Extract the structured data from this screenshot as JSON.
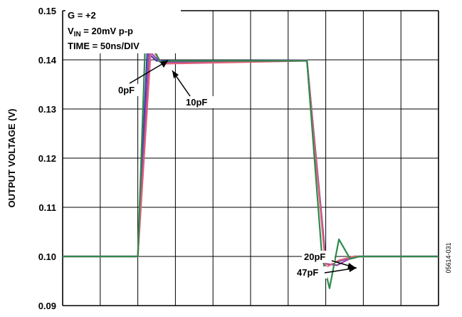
{
  "chart_data": {
    "type": "line",
    "ylabel": "OUTPUT VOLTAGE (V)",
    "xlabel": "",
    "ylim": [
      0.09,
      0.15
    ],
    "x_divisions": 10,
    "y_ticks": [
      "0.09",
      "0.10",
      "0.11",
      "0.12",
      "0.13",
      "0.14",
      "0.15"
    ],
    "grid": true,
    "info_lines": {
      "gain": "G = +2",
      "vin_main": "V",
      "vin_sub": "IN",
      "vin_rest": " = 20mV p-p",
      "time": "TIME = 50ns/DIV"
    },
    "annotations": [
      "0pF",
      "10pF",
      "20pF",
      "47pF"
    ],
    "figure_id": "05614-031",
    "series": [
      {
        "name": "0pF",
        "color": "#3d3daa",
        "x": [
          0,
          4.0,
          4.5,
          5.0,
          13.0,
          14.0,
          14.5,
          15.5,
          20.0
        ],
        "y": [
          0.1,
          0.1,
          0.1415,
          0.1398,
          0.1399,
          0.0992,
          0.0988,
          0.1,
          0.1
        ]
      },
      {
        "name": "10pF",
        "color": "#9a44aa",
        "x": [
          0,
          4.0,
          4.6,
          5.2,
          13.0,
          14.0,
          14.6,
          15.5,
          20.0
        ],
        "y": [
          0.1,
          0.1,
          0.1418,
          0.1395,
          0.1399,
          0.0985,
          0.0982,
          0.1,
          0.1
        ]
      },
      {
        "name": "20pF",
        "color": "#e0607a",
        "x": [
          0,
          4.0,
          4.7,
          5.3,
          13.0,
          14.0,
          14.7,
          15.5,
          20.0
        ],
        "y": [
          0.1,
          0.1,
          0.1425,
          0.1392,
          0.1398,
          0.0978,
          0.0992,
          0.1,
          0.1
        ]
      },
      {
        "name": "47pF",
        "color": "#2e8a4a",
        "x": [
          0,
          4.0,
          4.4,
          4.8,
          5.2,
          5.8,
          13.0,
          13.8,
          14.2,
          14.7,
          15.3,
          15.8,
          20.0
        ],
        "y": [
          0.1,
          0.1,
          0.144,
          0.1425,
          0.1395,
          0.1398,
          0.1398,
          0.1,
          0.0935,
          0.1035,
          0.0995,
          0.1,
          0.1
        ]
      }
    ]
  }
}
